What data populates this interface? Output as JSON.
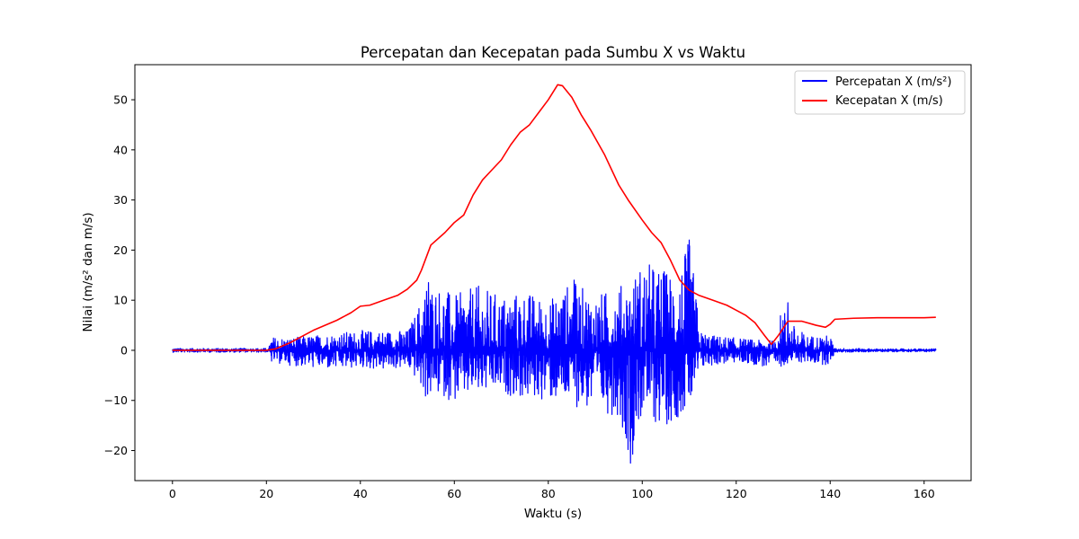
{
  "chart_data": {
    "type": "line",
    "title": "Percepatan dan Kecepatan pada Sumbu X vs Waktu",
    "xlabel": "Waktu (s)",
    "ylabel": "Nilai (m/s² dan m/s)",
    "xlim": [
      -8,
      170
    ],
    "ylim": [
      -26,
      57
    ],
    "xticks": [
      0,
      20,
      40,
      60,
      80,
      100,
      120,
      140,
      160
    ],
    "yticks": [
      -20,
      -10,
      0,
      10,
      20,
      30,
      40,
      50
    ],
    "xtick_labels": [
      "0",
      "20",
      "40",
      "60",
      "80",
      "100",
      "120",
      "140",
      "160"
    ],
    "ytick_labels": [
      "−20",
      "−10",
      "0",
      "10",
      "20",
      "30",
      "40",
      "50"
    ],
    "grid": false,
    "legend_position": "top-right",
    "series": [
      {
        "name": "Percepatan X (m/s²)",
        "color": "#0000ff",
        "envelope": {
          "x": [
            0,
            20.5,
            21,
            25,
            30,
            35,
            40,
            45,
            50,
            52,
            54,
            57,
            60,
            65,
            70,
            75,
            80,
            85,
            90,
            95,
            97.5,
            100,
            103,
            106,
            108,
            110,
            111.5,
            112,
            115,
            120,
            125,
            128,
            130,
            131,
            135,
            140,
            141,
            145,
            150,
            155,
            160,
            162.5
          ],
          "upper": [
            0.4,
            0.4,
            2.7,
            2.5,
            3,
            3.5,
            4,
            4,
            4,
            8,
            14,
            13,
            11,
            13,
            11,
            12,
            10,
            14,
            11,
            13,
            14,
            18,
            17,
            16,
            17,
            22,
            12,
            4,
            3,
            2.5,
            2,
            2,
            9.5,
            6,
            3,
            3,
            0.4,
            0.4,
            0.3,
            0.3,
            0.3,
            0.3
          ],
          "lower": [
            -0.4,
            -0.4,
            -2.5,
            -3,
            -3.5,
            -4,
            -3.5,
            -4,
            -3.5,
            -6,
            -10,
            -9,
            -10.5,
            -9,
            -8.5,
            -10,
            -10,
            -11,
            -12.5,
            -13,
            -22.5,
            -13,
            -15,
            -15,
            -13,
            -12,
            -10,
            -4,
            -3,
            -2.5,
            -3,
            -4.5,
            -3,
            -2.5,
            -2.5,
            -3,
            -0.4,
            -0.4,
            -0.3,
            -0.3,
            -0.3,
            -0.3
          ]
        }
      },
      {
        "name": "Kecepatan X (m/s)",
        "color": "#ff0000",
        "x": [
          0,
          20,
          22,
          25,
          30,
          35,
          38,
          40,
          42,
          45,
          48,
          50,
          52,
          53,
          55,
          58,
          60,
          62,
          64,
          66,
          68,
          70,
          72,
          74,
          76,
          78,
          80,
          82,
          83,
          85,
          87,
          89,
          92,
          95,
          97,
          100,
          102,
          104,
          106,
          108,
          110,
          112,
          115,
          118,
          120,
          122,
          124,
          126,
          127.5,
          129,
          131,
          134,
          137,
          139,
          140,
          141,
          145,
          150,
          155,
          160,
          162.5
        ],
        "y": [
          0,
          0,
          0.3,
          1.5,
          4,
          6,
          7.5,
          8.8,
          9,
          10,
          11,
          12.2,
          14,
          16,
          21,
          23.5,
          25.5,
          27,
          31,
          34,
          36,
          38,
          41,
          43.5,
          45,
          47.5,
          50,
          53,
          52.8,
          50.5,
          47,
          44,
          39,
          33,
          30,
          26,
          23.5,
          21.5,
          18,
          14,
          12,
          11,
          10,
          9,
          8,
          7,
          5.5,
          3,
          1.2,
          3,
          5.8,
          5.8,
          5,
          4.6,
          5.2,
          6.2,
          6.4,
          6.5,
          6.5,
          6.5,
          6.6
        ]
      }
    ]
  }
}
